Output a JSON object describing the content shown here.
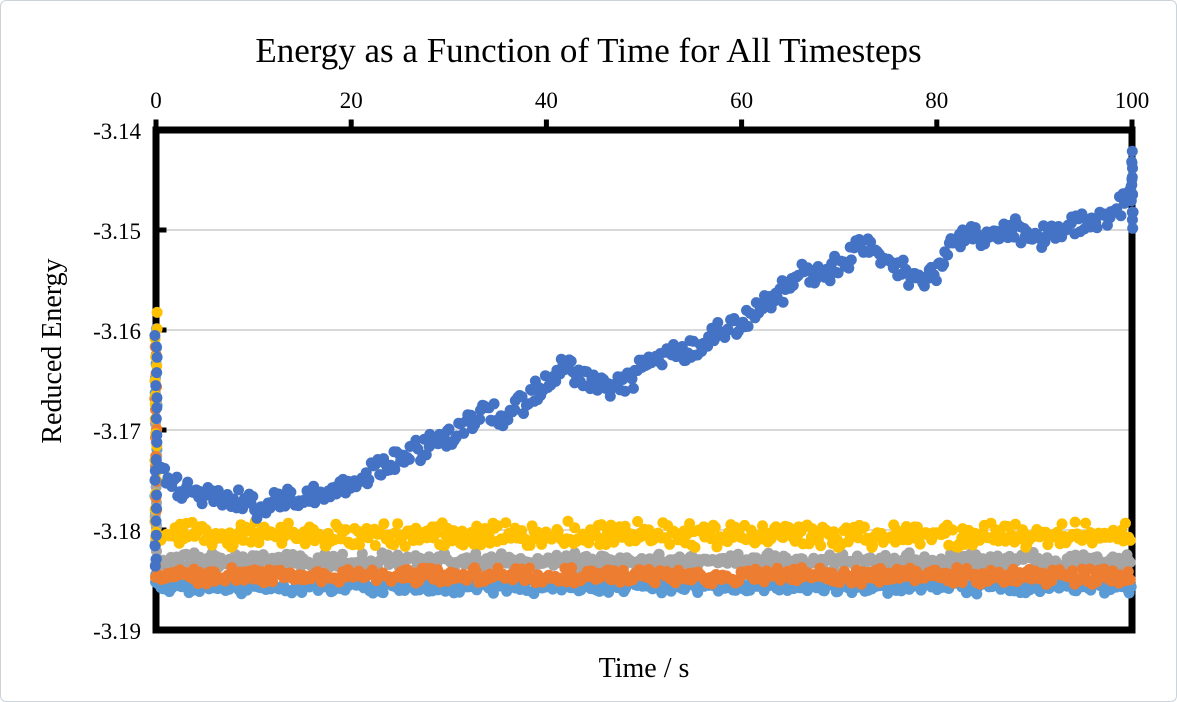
{
  "figure": {
    "title": "Energy as a Function of Time for All Timesteps",
    "background_color": "#ffffff",
    "frame_color": "#000000",
    "gridline_color": "#d9d9d9"
  },
  "chart_data": {
    "type": "scatter",
    "title": "Energy as a Function of Time for All Timesteps",
    "xlabel": "Time / s",
    "ylabel": "Reduced Energy",
    "xlim": [
      0,
      100
    ],
    "ylim": [
      -3.19,
      -3.14
    ],
    "x_axis_position": "top",
    "x_ticks": [
      0,
      20,
      40,
      60,
      80,
      100
    ],
    "x_tick_labels": [
      "0",
      "20",
      "40",
      "60",
      "80",
      "100"
    ],
    "y_ticks": [
      -3.14,
      -3.15,
      -3.16,
      -3.17,
      -3.18,
      -3.19
    ],
    "y_tick_labels": [
      "-3.14",
      "-3.15",
      "-3.16",
      "-3.17",
      "-3.18",
      "-3.19"
    ],
    "grid": "horizontal",
    "grid_values": [
      -3.15,
      -3.16,
      -3.17,
      -3.18
    ],
    "legend": "none",
    "marker": "circle",
    "marker_diameter_px": 11,
    "series": [
      {
        "name": "light-blue-band",
        "color": "#5B9BD5",
        "band_mean": -3.1856,
        "band_spread": 0.0009,
        "n_points": 500,
        "seed": 505,
        "start_transient": {
          "x": 0,
          "y_from": -3.16,
          "y_to": -3.1856,
          "n_points": 18
        }
      },
      {
        "name": "gray-band",
        "color": "#A5A5A5",
        "band_mean": -3.1831,
        "band_spread": 0.0009,
        "n_points": 500,
        "seed": 303,
        "start_transient": {
          "x": 0,
          "y_from": -3.1655,
          "y_to": -3.1831,
          "n_points": 16
        }
      },
      {
        "name": "orange-band",
        "color": "#ED7D31",
        "band_mean": -3.1846,
        "band_spread": 0.0009,
        "n_points": 500,
        "seed": 404,
        "start_transient": {
          "x": 0,
          "y_from": -3.1615,
          "y_to": -3.1846,
          "n_points": 18
        }
      },
      {
        "name": "gold-band",
        "color": "#FFC000",
        "band_mean": -3.1805,
        "band_spread": 0.0014,
        "n_points": 500,
        "seed": 202,
        "start_transient": {
          "x": 0,
          "y_from": -3.1585,
          "y_to": -3.1805,
          "n_points": 18
        }
      },
      {
        "name": "blue-rising",
        "color": "#4472C4",
        "y_spread": 0.0015,
        "n_points": 500,
        "seed": 101,
        "trend": [
          [
            0,
            -3.1735
          ],
          [
            2,
            -3.1755
          ],
          [
            4,
            -3.176
          ],
          [
            6,
            -3.1765
          ],
          [
            8,
            -3.177
          ],
          [
            10,
            -3.1775
          ],
          [
            12,
            -3.1775
          ],
          [
            14,
            -3.177
          ],
          [
            16,
            -3.1765
          ],
          [
            18,
            -3.1765
          ],
          [
            20,
            -3.1755
          ],
          [
            22,
            -3.174
          ],
          [
            24,
            -3.173
          ],
          [
            26,
            -3.172
          ],
          [
            28,
            -3.1715
          ],
          [
            30,
            -3.1705
          ],
          [
            32,
            -3.169
          ],
          [
            34,
            -3.168
          ],
          [
            36,
            -3.1685
          ],
          [
            38,
            -3.167
          ],
          [
            40,
            -3.1655
          ],
          [
            42,
            -3.1635
          ],
          [
            44,
            -3.165
          ],
          [
            46,
            -3.1655
          ],
          [
            48,
            -3.1655
          ],
          [
            50,
            -3.1635
          ],
          [
            52,
            -3.1625
          ],
          [
            54,
            -3.1625
          ],
          [
            56,
            -3.1615
          ],
          [
            58,
            -3.16
          ],
          [
            60,
            -3.159
          ],
          [
            62,
            -3.1575
          ],
          [
            64,
            -3.1565
          ],
          [
            66,
            -3.1545
          ],
          [
            68,
            -3.1545
          ],
          [
            70,
            -3.1535
          ],
          [
            72,
            -3.1515
          ],
          [
            74,
            -3.152
          ],
          [
            76,
            -3.1535
          ],
          [
            78,
            -3.1555
          ],
          [
            80,
            -3.1545
          ],
          [
            82,
            -3.151
          ],
          [
            84,
            -3.1505
          ],
          [
            86,
            -3.1505
          ],
          [
            88,
            -3.15
          ],
          [
            90,
            -3.1505
          ],
          [
            92,
            -3.15
          ],
          [
            94,
            -3.1495
          ],
          [
            96,
            -3.149
          ],
          [
            98,
            -3.1485
          ],
          [
            100,
            -3.146
          ]
        ],
        "start_transient": {
          "x": 0,
          "y_from": -3.1605,
          "y_to": -3.184,
          "n_points": 20
        },
        "end_transient": {
          "x": 100,
          "y_from": -3.1495,
          "y_to": -3.1425,
          "n_points": 14
        }
      }
    ]
  }
}
